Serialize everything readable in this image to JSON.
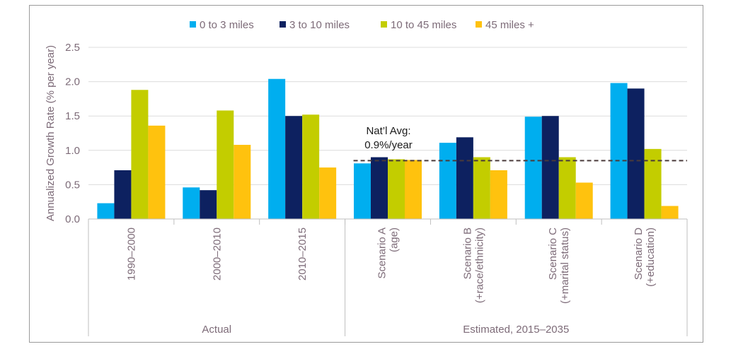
{
  "chart_data": {
    "type": "bar",
    "ylabel": "Annualized Growth Rate (% per year)",
    "ylim": [
      0,
      2.5
    ],
    "yticks": [
      "0.0",
      "0.5",
      "1.0",
      "1.5",
      "2.0",
      "2.5"
    ],
    "grid": true,
    "legend_position": "top",
    "categories": [
      [
        "1990–2000"
      ],
      [
        "2000–2010"
      ],
      [
        "2010–2015"
      ],
      [
        "Scenario A",
        "(age)"
      ],
      [
        "Scenario B",
        "(+race/ethnicity)"
      ],
      [
        "Scenario C",
        "(+marital status)"
      ],
      [
        "Scenario D",
        "(+education)"
      ]
    ],
    "groups": [
      {
        "label": "Actual",
        "span": 3
      },
      {
        "label": "Estimated, 2015–2035",
        "span": 4
      }
    ],
    "series": [
      {
        "name": "0 to 3 miles",
        "color": "#00aeef",
        "values": [
          0.23,
          0.46,
          2.04,
          0.81,
          1.11,
          1.49,
          1.98
        ]
      },
      {
        "name": "3 to 10 miles",
        "color": "#0d2160",
        "values": [
          0.71,
          0.42,
          1.5,
          0.9,
          1.19,
          1.5,
          1.9
        ]
      },
      {
        "name": "10 to 45 miles",
        "color": "#c3cd00",
        "values": [
          1.88,
          1.58,
          1.52,
          0.87,
          0.9,
          0.9,
          1.02
        ]
      },
      {
        "name": "45 miles +",
        "color": "#ffc20e",
        "values": [
          1.36,
          1.08,
          0.75,
          0.86,
          0.71,
          0.53,
          0.19
        ]
      }
    ],
    "reference_line": {
      "value": 0.85,
      "label": [
        "Nat’l Avg:",
        "0.9%/year"
      ],
      "style": "dashed",
      "color": "#4a3b3b"
    }
  }
}
